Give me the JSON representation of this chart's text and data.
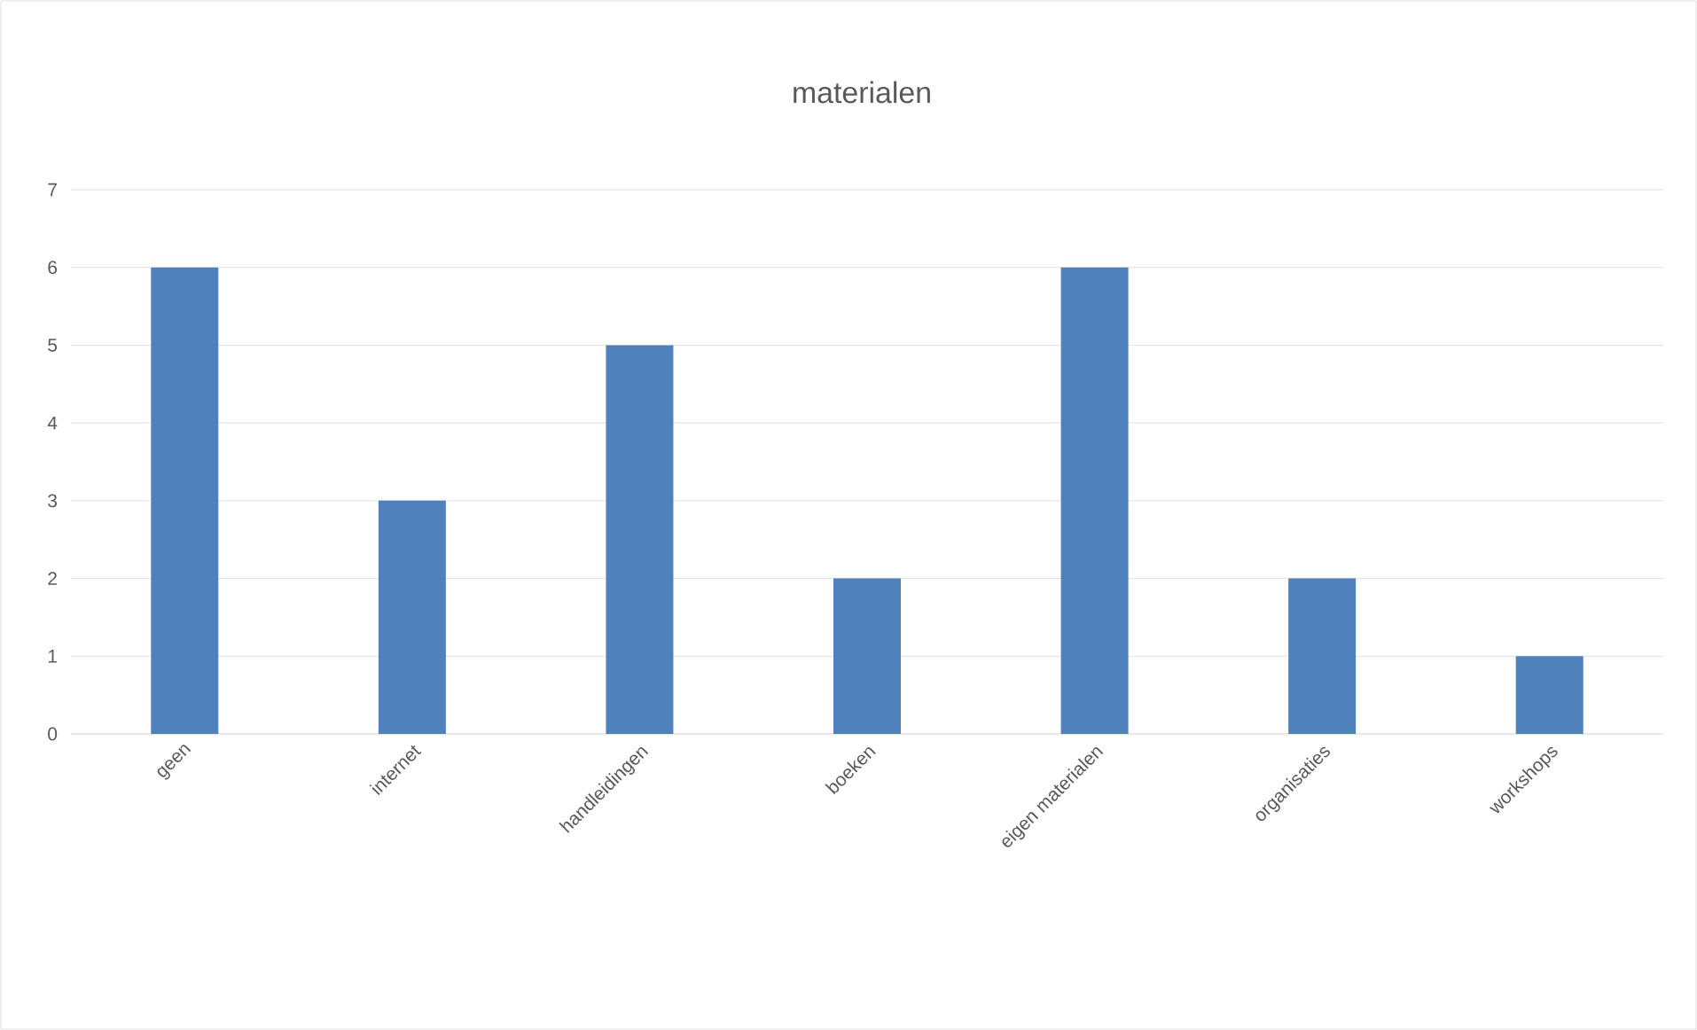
{
  "chart_data": {
    "type": "bar",
    "title": "materialen",
    "categories": [
      "geen",
      "internet",
      "handleidingen",
      "boeken",
      "eigen materialen",
      "organisaties",
      "workshops"
    ],
    "values": [
      6,
      3,
      5,
      2,
      6,
      2,
      1
    ],
    "color": "#4f81bd",
    "ylim": [
      0,
      7
    ],
    "yticks": [
      0,
      1,
      2,
      3,
      4,
      5,
      6,
      7
    ],
    "grid": "y"
  }
}
